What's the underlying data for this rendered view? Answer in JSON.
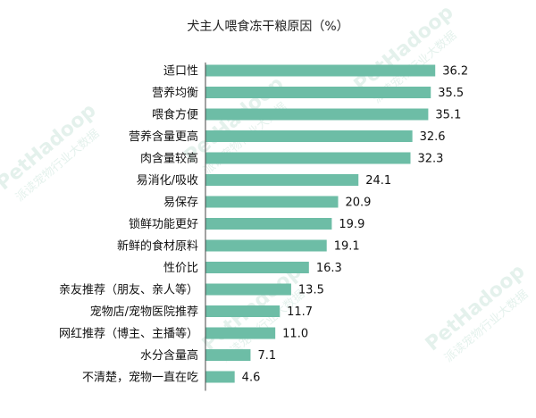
{
  "chart_data": {
    "type": "bar",
    "orientation": "horizontal",
    "title": "犬主人喂食冻干粮原因（%）",
    "xlabel": "",
    "ylabel": "",
    "xlim": [
      0,
      40
    ],
    "grid": false,
    "legend": "none",
    "bar_color": "#6dbda6",
    "categories": [
      "适口性",
      "营养均衡",
      "喂食方便",
      "营养含量更高",
      "肉含量较高",
      "易消化/吸收",
      "易保存",
      "锁鲜功能更好",
      "新鲜的食材原料",
      "性价比",
      "亲友推荐（朋友、亲人等）",
      "宠物店/宠物医院推荐",
      "网红推荐（博主、主播等）",
      "水分含量高",
      "不清楚，宠物一直在吃"
    ],
    "values": [
      36.2,
      35.5,
      35.1,
      32.6,
      32.3,
      24.1,
      20.9,
      19.9,
      19.1,
      16.3,
      13.5,
      11.7,
      11.0,
      7.1,
      4.6
    ]
  },
  "watermark": {
    "brand": "PetHadoop",
    "tagline": "派读宠物行业大数据"
  }
}
